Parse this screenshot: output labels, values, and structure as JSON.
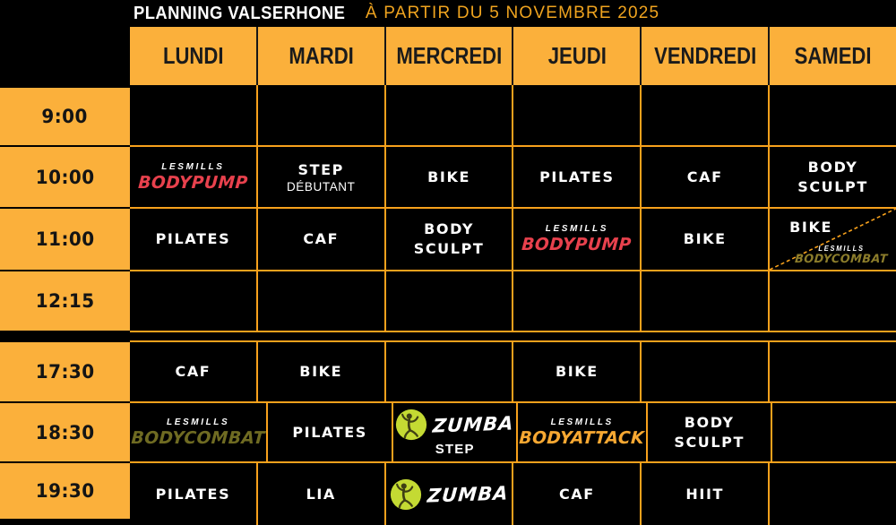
{
  "title": {
    "main": "PLANNING VALSERHONE",
    "subtitle": "À PARTIR DU 5 NOVEMBRE 2025"
  },
  "days": [
    "LUNDI",
    "MARDI",
    "MERCREDI",
    "JEUDI",
    "VENDREDI",
    "SAMEDI"
  ],
  "blocks": [
    {
      "rows": [
        {
          "time": "9:00",
          "cells": [
            {
              "type": "empty"
            },
            {
              "type": "empty"
            },
            {
              "type": "empty"
            },
            {
              "type": "empty"
            },
            {
              "type": "empty"
            },
            {
              "type": "empty"
            }
          ]
        },
        {
          "time": "10:00",
          "cells": [
            {
              "type": "lesmills",
              "brand": "LESMILLS",
              "program": "BODYPUMP",
              "color": "#E8414D"
            },
            {
              "type": "text",
              "lines": [
                "STEP"
              ],
              "sub": "DÉBUTANT"
            },
            {
              "type": "text",
              "lines": [
                "BIKE"
              ]
            },
            {
              "type": "text",
              "lines": [
                "PILATES"
              ]
            },
            {
              "type": "text",
              "lines": [
                "CAF"
              ]
            },
            {
              "type": "text",
              "lines": [
                "BODY",
                "SCULPT"
              ]
            }
          ]
        },
        {
          "time": "11:00",
          "cells": [
            {
              "type": "text",
              "lines": [
                "PILATES"
              ]
            },
            {
              "type": "text",
              "lines": [
                "CAF"
              ]
            },
            {
              "type": "text",
              "lines": [
                "BODY",
                "SCULPT"
              ]
            },
            {
              "type": "lesmills",
              "brand": "LESMILLS",
              "program": "BODYPUMP",
              "color": "#E8414D"
            },
            {
              "type": "text",
              "lines": [
                "BIKE"
              ]
            },
            {
              "type": "split",
              "top": "BIKE",
              "brand": "LESMILLS",
              "program": "BODYCOMBAT",
              "color": "#8C7D2B"
            }
          ]
        },
        {
          "time": "12:15",
          "cells": [
            {
              "type": "empty"
            },
            {
              "type": "empty"
            },
            {
              "type": "empty"
            },
            {
              "type": "empty"
            },
            {
              "type": "empty"
            },
            {
              "type": "empty"
            }
          ]
        }
      ]
    },
    {
      "rows": [
        {
          "time": "17:30",
          "cells": [
            {
              "type": "text",
              "lines": [
                "CAF"
              ]
            },
            {
              "type": "text",
              "lines": [
                "BIKE"
              ]
            },
            {
              "type": "empty"
            },
            {
              "type": "text",
              "lines": [
                "BIKE"
              ]
            },
            {
              "type": "empty"
            },
            {
              "type": "empty"
            }
          ]
        },
        {
          "time": "18:30",
          "cells": [
            {
              "type": "lesmills",
              "brand": "LESMILLS",
              "program": "BODYCOMBAT",
              "color": "#6F6B22"
            },
            {
              "type": "text",
              "lines": [
                "PILATES"
              ]
            },
            {
              "type": "zumba",
              "label": "ZUMBA",
              "sub": "STEP"
            },
            {
              "type": "lesmills",
              "brand": "LESMILLS",
              "program": "BODYATTACK",
              "color": "#F7A832"
            },
            {
              "type": "text",
              "lines": [
                "BODY",
                "SCULPT"
              ]
            },
            {
              "type": "empty"
            }
          ]
        },
        {
          "time": "19:30",
          "cells": [
            {
              "type": "text",
              "lines": [
                "PILATES"
              ]
            },
            {
              "type": "text",
              "lines": [
                "LIA"
              ]
            },
            {
              "type": "zumba",
              "label": "ZUMBA"
            },
            {
              "type": "text",
              "lines": [
                "CAF"
              ]
            },
            {
              "type": "text",
              "lines": [
                "HIIT"
              ]
            },
            {
              "type": "empty"
            }
          ]
        }
      ]
    }
  ],
  "colors": {
    "header_yellow": "#FBB03B",
    "grid_line_orange": "#F7A11C",
    "subtitle_gold": "#F0A41F",
    "bodypump_red": "#E8414D",
    "bodycombat_olive": "#6F6B22",
    "bodycombat_gold": "#8C7D2B",
    "bodyattack_orange": "#F7A832",
    "zumba_green": "#C4DA33",
    "background_black": "#000000"
  }
}
